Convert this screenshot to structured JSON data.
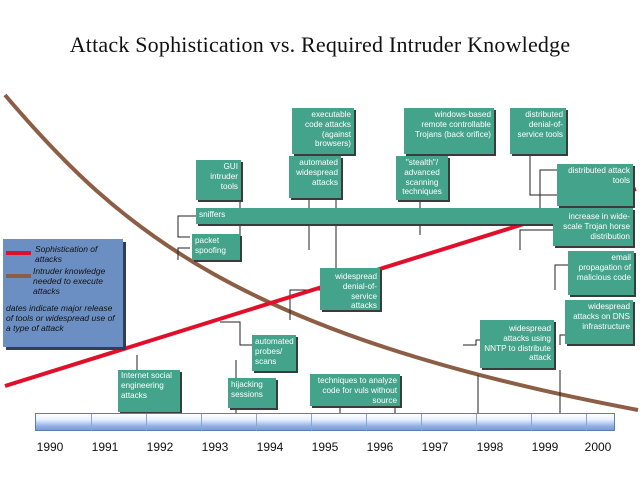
{
  "title": "Attack Sophistication vs. Required Intruder Knowledge",
  "colors": {
    "box": "#43a38b",
    "sophistication_line": "#e0102a",
    "knowledge_curve": "#8b5e45",
    "timeline": "#7a9ad6"
  },
  "legend": {
    "sophistication": "Sophistication of attacks",
    "knowledge": "Intruder knowledge needed to execute attacks",
    "note": "dates indicate major release of tools or widespread use of a type of attack"
  },
  "boxes": {
    "executable": "executable code attacks (against browsers)",
    "windows": "windows-based remote controllable Trojans (back orifice)",
    "ddos_top": "distributed denial-of-service tools",
    "gui": "GUI intruder tools",
    "automated": "automated widespread attacks",
    "stealth": "\"stealth\"/ advanced scanning techniques",
    "dat": "distributed attack tools",
    "sniffers": "sniffers",
    "trojan": "increase in wide-scale Trojan horse distribution",
    "spoofing": "packet spoofing",
    "email": "email propagation of malicious code",
    "dos": "widespread denial-of-service attacks",
    "dns": "widespread attacks on DNS infrastructure",
    "nntp": "widespread attacks using NNTP to distribute attack",
    "probes": "automated probes/ scans",
    "social": "Internet social engineering attacks",
    "hijack": "hijacking sessions",
    "analyze": "techniques to analyze code for vuls without source"
  },
  "timeline": {
    "years": [
      "1990",
      "1991",
      "1992",
      "1993",
      "1994",
      "1995",
      "1996",
      "1997",
      "1998",
      "1999",
      "2000"
    ]
  }
}
